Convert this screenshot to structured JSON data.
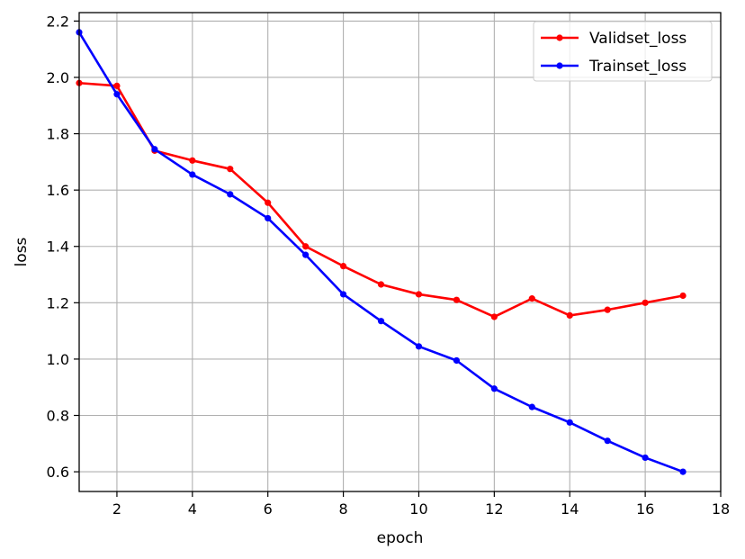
{
  "chart_data": {
    "type": "line",
    "xlabel": "epoch",
    "ylabel": "loss",
    "xlim": [
      1,
      18
    ],
    "ylim": [
      0.53,
      2.23
    ],
    "xticks": [
      2,
      4,
      6,
      8,
      10,
      12,
      14,
      16,
      18
    ],
    "yticks": [
      0.6,
      0.8,
      1.0,
      1.2,
      1.4,
      1.6,
      1.8,
      2.0,
      2.2
    ],
    "xtick_labels": [
      "2",
      "4",
      "6",
      "8",
      "10",
      "12",
      "14",
      "16",
      "18"
    ],
    "ytick_labels": [
      "0.6",
      "0.8",
      "1.0",
      "1.2",
      "1.4",
      "1.6",
      "1.8",
      "2.0",
      "2.2"
    ],
    "grid": true,
    "legend_position": "top-right",
    "x": [
      1,
      2,
      3,
      4,
      5,
      6,
      7,
      8,
      9,
      10,
      11,
      12,
      13,
      14,
      15,
      16,
      17
    ],
    "series": [
      {
        "name": "Validset_loss",
        "color": "#ff0000",
        "values": [
          1.98,
          1.97,
          1.74,
          1.705,
          1.675,
          1.555,
          1.4,
          1.33,
          1.265,
          1.23,
          1.21,
          1.15,
          1.215,
          1.155,
          1.175,
          1.2,
          1.225
        ]
      },
      {
        "name": "Trainset_loss",
        "color": "#0000ff",
        "values": [
          2.16,
          1.94,
          1.745,
          1.655,
          1.585,
          1.5,
          1.37,
          1.23,
          1.135,
          1.045,
          0.995,
          0.895,
          0.83,
          0.775,
          0.71,
          0.65,
          0.6
        ]
      }
    ]
  }
}
